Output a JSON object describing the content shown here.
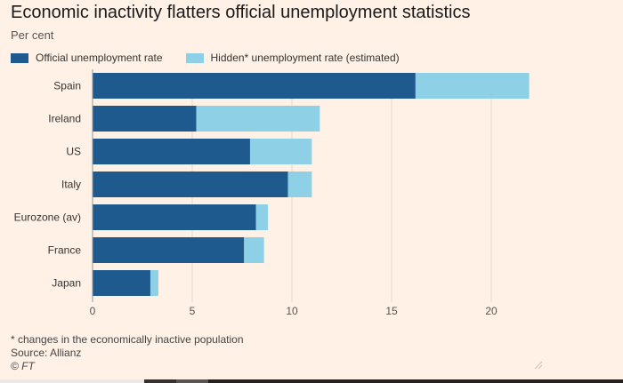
{
  "chart_data": {
    "type": "bar",
    "orientation": "horizontal",
    "stacked": true,
    "title": "Economic inactivity flatters official unemployment statistics",
    "subtitle": "Per cent",
    "categories": [
      "Spain",
      "Ireland",
      "US",
      "Italy",
      "Eurozone (av)",
      "France",
      "Japan"
    ],
    "series": [
      {
        "name": "Official unemployment rate",
        "color": "#1f5a8f",
        "values": [
          16.2,
          5.2,
          7.9,
          9.8,
          8.2,
          7.6,
          2.9
        ]
      },
      {
        "name": "Hidden* unemployment rate (estimated)",
        "color": "#8ed0e6",
        "values": [
          5.7,
          6.2,
          3.1,
          1.2,
          0.6,
          1.0,
          0.4
        ]
      }
    ],
    "xlim": [
      0,
      23
    ],
    "xticks": [
      0,
      5,
      10,
      15,
      20
    ],
    "grid": true,
    "legend": "top-left",
    "footnote": "* changes in the economically inactive population",
    "source": "Source: Allianz",
    "credit": "© FT"
  }
}
